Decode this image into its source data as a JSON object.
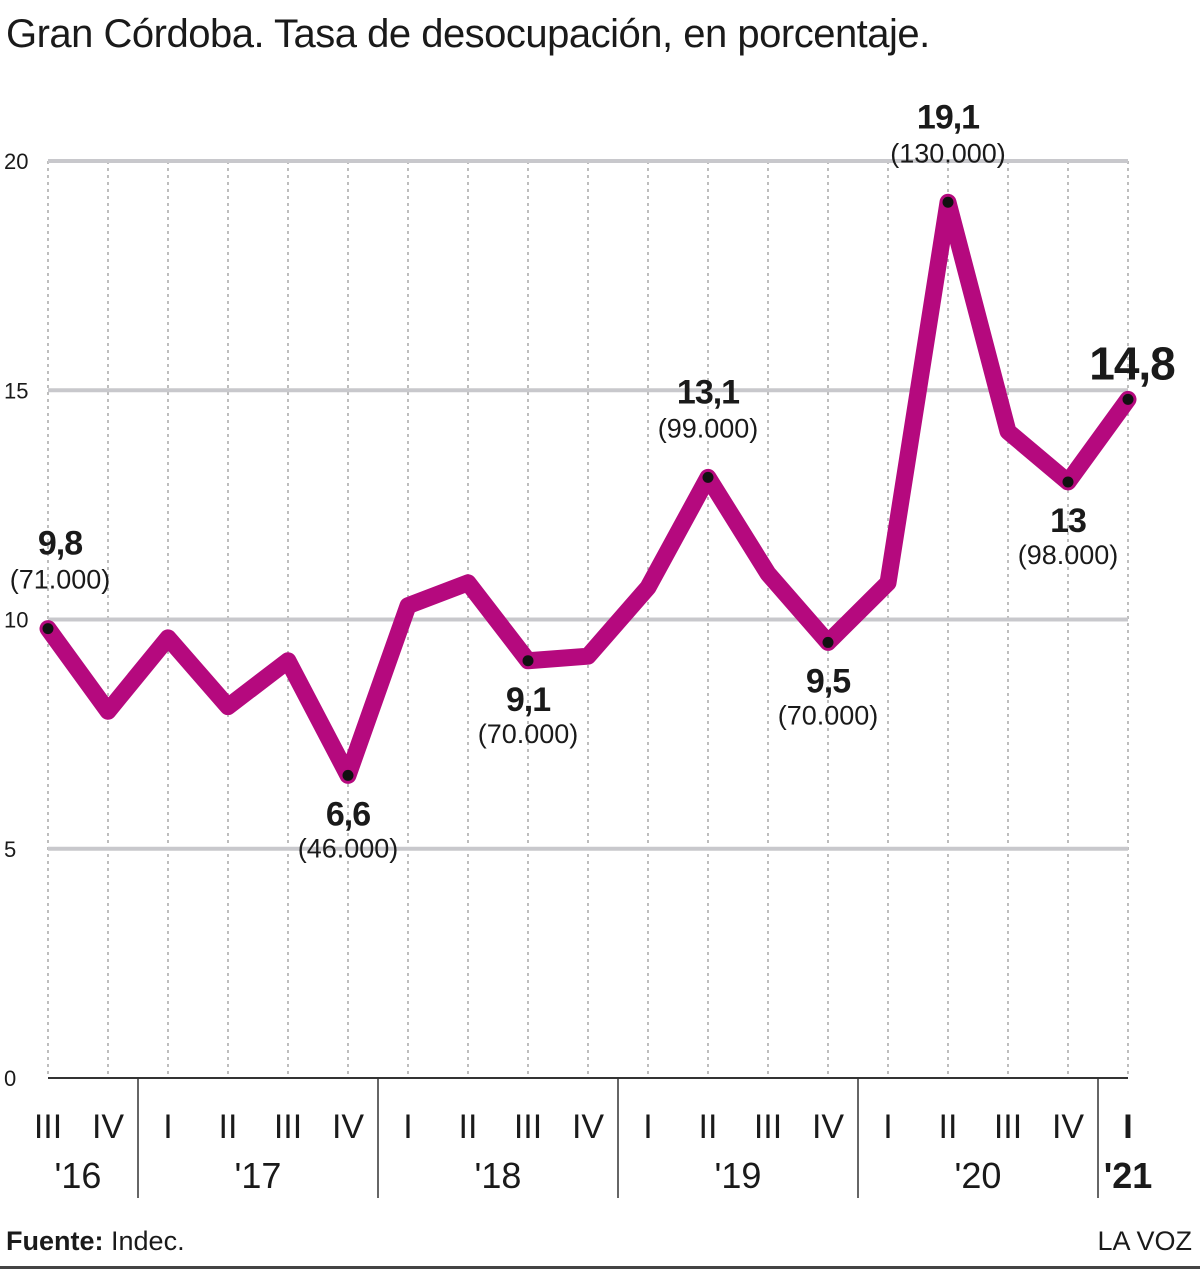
{
  "title": "Gran Córdoba. Tasa de desocupación, en porcentaje.",
  "footer": {
    "source_label": "Fuente:",
    "source_value": "Indec.",
    "brand": "LA VOZ"
  },
  "colors": {
    "line": "#b5097e",
    "grid": "#c8c8cc",
    "text": "#1a1a1a"
  },
  "chart_data": {
    "type": "line",
    "title": "Gran Córdoba. Tasa de desocupación, en porcentaje.",
    "xlabel": "",
    "ylabel": "",
    "ylim": [
      0,
      20
    ],
    "yticks": [
      0,
      5,
      10,
      15,
      20
    ],
    "grid": true,
    "legend": "none",
    "categories": [
      "III",
      "IV",
      "I",
      "II",
      "III",
      "IV",
      "I",
      "II",
      "III",
      "IV",
      "I",
      "II",
      "III",
      "IV",
      "I",
      "II",
      "III",
      "IV",
      "I"
    ],
    "years": [
      {
        "label": "'16",
        "start": 0,
        "end": 1
      },
      {
        "label": "'17",
        "start": 2,
        "end": 5
      },
      {
        "label": "'18",
        "start": 6,
        "end": 9
      },
      {
        "label": "'19",
        "start": 10,
        "end": 13
      },
      {
        "label": "'20",
        "start": 14,
        "end": 17
      },
      {
        "label": "'21",
        "start": 18,
        "end": 18
      }
    ],
    "series": [
      {
        "values": [
          9.8,
          8.0,
          9.6,
          8.1,
          9.1,
          6.6,
          10.3,
          10.8,
          9.1,
          9.2,
          10.7,
          13.1,
          11.0,
          9.5,
          10.8,
          19.1,
          14.1,
          13.0,
          14.8
        ]
      }
    ],
    "annotations": [
      {
        "index": 0,
        "value": "9,8",
        "detail": "(71.000)",
        "position": "above"
      },
      {
        "index": 5,
        "value": "6,6",
        "detail": "(46.000)",
        "position": "below"
      },
      {
        "index": 8,
        "value": "9,1",
        "detail": "(70.000)",
        "position": "below"
      },
      {
        "index": 11,
        "value": "13,1",
        "detail": "(99.000)",
        "position": "above"
      },
      {
        "index": 13,
        "value": "9,5",
        "detail": "(70.000)",
        "position": "below"
      },
      {
        "index": 15,
        "value": "19,1",
        "detail": "(130.000)",
        "position": "above"
      },
      {
        "index": 17,
        "value": "13",
        "detail": "(98.000)",
        "position": "below"
      },
      {
        "index": 18,
        "value": "14,8",
        "detail": "",
        "position": "above"
      }
    ],
    "markers": [
      0,
      5,
      8,
      11,
      13,
      15,
      17,
      18
    ]
  }
}
